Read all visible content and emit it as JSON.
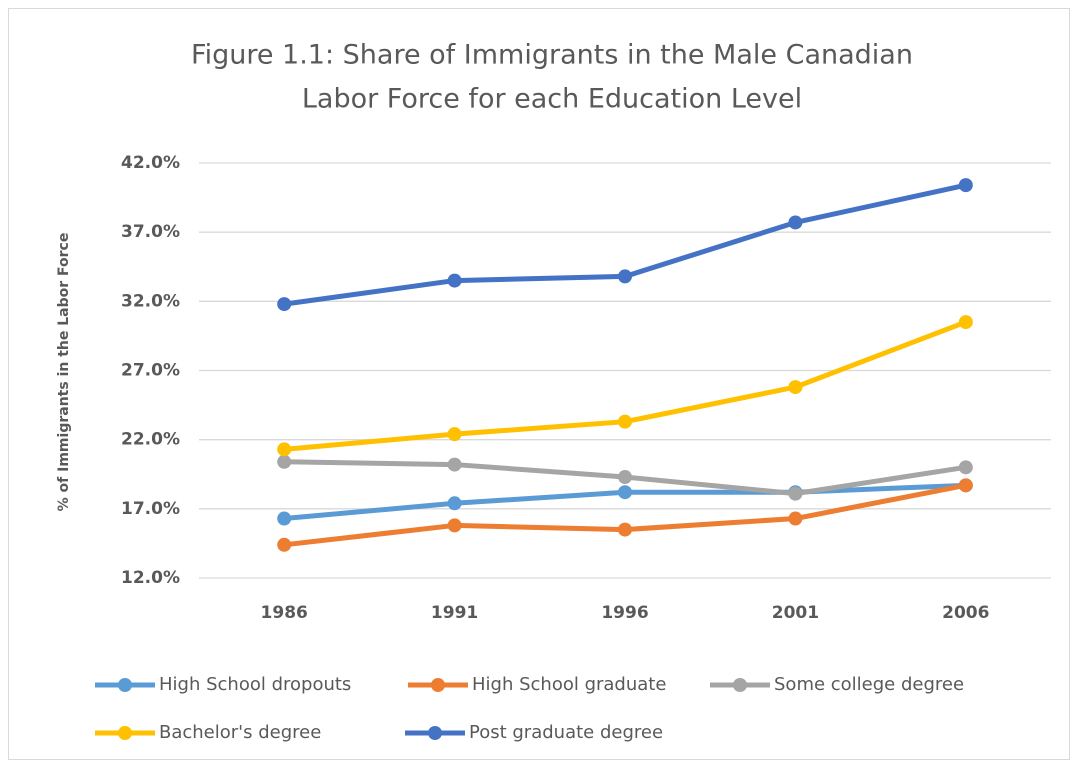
{
  "chart_data": {
    "type": "line",
    "title": [
      "Figure 1.1: Share of Immigrants in the Male Canadian",
      "Labor Force for each Education Level"
    ],
    "y_label": "% of Immigrants in the Labor Force",
    "categories": [
      "1986",
      "1991",
      "1996",
      "2001",
      "2006"
    ],
    "series": [
      {
        "name": "High School dropouts",
        "color": "#5b9bd5",
        "values": [
          16.3,
          17.4,
          18.2,
          18.2,
          18.7
        ]
      },
      {
        "name": "High School graduate",
        "color": "#ed7d31",
        "values": [
          14.4,
          15.8,
          15.5,
          16.3,
          18.7
        ]
      },
      {
        "name": "Some college degree",
        "color": "#a5a5a5",
        "values": [
          20.4,
          20.2,
          19.3,
          18.1,
          20.0
        ]
      },
      {
        "name": "Bachelor's degree",
        "color": "#ffc000",
        "values": [
          21.3,
          22.4,
          23.3,
          25.8,
          30.5
        ]
      },
      {
        "name": "Post graduate degree",
        "color": "#4472c4",
        "values": [
          31.8,
          33.5,
          33.8,
          37.7,
          40.4
        ]
      }
    ],
    "ylim": [
      12,
      42
    ],
    "yticks": [
      {
        "value": 12,
        "label": "12.0%"
      },
      {
        "value": 17,
        "label": "17.0%"
      },
      {
        "value": 22,
        "label": "22.0%"
      },
      {
        "value": 27,
        "label": "27.0%"
      },
      {
        "value": 32,
        "label": "32.0%"
      },
      {
        "value": 37,
        "label": "37.0%"
      },
      {
        "value": 42,
        "label": "42.0%"
      }
    ],
    "grid": true,
    "legend": "bottom"
  }
}
